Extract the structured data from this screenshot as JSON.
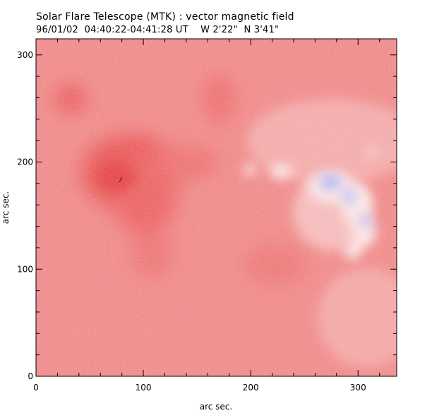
{
  "header": {
    "title": "Solar Flare Telescope (MTK) : vector magnetic field",
    "date": "96/01/02",
    "time_range": "04:40:22-04:41:28 UT",
    "position": "W 2'22\"  N 3'41\""
  },
  "axes": {
    "xlabel": "arc sec.",
    "ylabel": "arc sec.",
    "xlim": [
      0,
      336
    ],
    "ylim": [
      0,
      315
    ],
    "x_ticks": [
      0,
      100,
      200,
      300
    ],
    "y_ticks": [
      0,
      100,
      200,
      300
    ],
    "x_minor_step": 20,
    "y_minor_step": 20
  },
  "colors": {
    "field_background": "#f08c8c",
    "strong_positive": "#e84848",
    "negative_polarity": "#b4b4f0",
    "neutral": "#ffffff"
  }
}
